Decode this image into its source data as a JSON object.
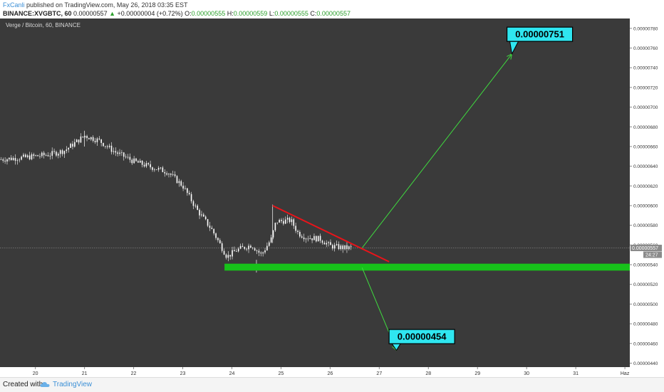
{
  "header": {
    "author": "FxCanli",
    "published_text": " published on TradingView.com, May 26, 2018 03:35 EST",
    "symbol": "BINANCE:XVGBTC, 60",
    "last": "0.00000557",
    "arrow": "▲",
    "change": "+0.00000004 (+0.72%)",
    "o_label": "O:",
    "o_value": "0.00000555",
    "h_label": "H:",
    "h_value": "0.00000559",
    "l_label": "L:",
    "l_value": "0.00000555",
    "c_label": "C:",
    "c_value": "0.00000557"
  },
  "footer": {
    "created_with": "Created with",
    "brand": "TradingView"
  },
  "colors": {
    "background": "#3a3a3a",
    "candle": "#ffffff",
    "trendline": "#e8141a",
    "support": "#17c21a",
    "arrow": "#3fdb3f",
    "callout_fill": "#2fe6f0",
    "axis_bg": "#ffffff",
    "price_tag": "#8a8a8a"
  },
  "chart_data": {
    "type": "candlestick",
    "title": "Verge / Bitcoin, 60, BINANCE",
    "interval": "60",
    "y_ticks": [
      "0.00000780",
      "0.00000760",
      "0.00000740",
      "0.00000720",
      "0.00000700",
      "0.00000680",
      "0.00000660",
      "0.00000640",
      "0.00000620",
      "0.00000600",
      "0.00000580",
      "0.00000560",
      "0.00000540",
      "0.00000520",
      "0.00000500",
      "0.00000480",
      "0.00000460",
      "0.00000440"
    ],
    "y_tick_values": [
      7.8,
      7.6,
      7.4,
      7.2,
      7.0,
      6.8,
      6.6,
      6.4,
      6.2,
      6.0,
      5.8,
      5.6,
      5.4,
      5.2,
      5.0,
      4.8,
      4.6,
      4.4
    ],
    "y_scale": 1e-06,
    "ylim": [
      4.36,
      7.9
    ],
    "x_ticks": [
      "20",
      "21",
      "22",
      "23",
      "24",
      "25",
      "26",
      "27",
      "28",
      "29",
      "30",
      "31",
      "Haz"
    ],
    "x_tick_days": [
      20,
      21,
      22,
      23,
      24,
      25,
      26,
      27,
      28,
      29,
      30,
      31,
      32
    ],
    "xlim": [
      19.28,
      32.1
    ],
    "last_price": "0.00000557",
    "last_price_value": 5.57,
    "countdown": "24:27",
    "key_points": [
      {
        "day": 19.3,
        "price": 6.47
      },
      {
        "day": 19.8,
        "price": 6.49
      },
      {
        "day": 20.3,
        "price": 6.52
      },
      {
        "day": 20.6,
        "price": 6.56
      },
      {
        "day": 21.0,
        "price": 6.71
      },
      {
        "day": 21.3,
        "price": 6.66
      },
      {
        "day": 21.6,
        "price": 6.55
      },
      {
        "day": 22.0,
        "price": 6.45
      },
      {
        "day": 22.3,
        "price": 6.4
      },
      {
        "day": 22.7,
        "price": 6.34
      },
      {
        "day": 23.0,
        "price": 6.2
      },
      {
        "day": 23.3,
        "price": 5.95
      },
      {
        "day": 23.6,
        "price": 5.75
      },
      {
        "day": 23.9,
        "price": 5.48
      },
      {
        "day": 24.1,
        "price": 5.55
      },
      {
        "day": 24.4,
        "price": 5.6
      },
      {
        "day": 24.6,
        "price": 5.5
      },
      {
        "day": 24.8,
        "price": 5.66
      },
      {
        "day": 24.9,
        "price": 5.84
      },
      {
        "day": 25.2,
        "price": 5.85
      },
      {
        "day": 25.35,
        "price": 5.72
      },
      {
        "day": 25.5,
        "price": 5.68
      },
      {
        "day": 25.8,
        "price": 5.66
      },
      {
        "day": 26.0,
        "price": 5.59
      },
      {
        "day": 26.3,
        "price": 5.57
      },
      {
        "day": 26.45,
        "price": 5.57
      }
    ],
    "annotations": {
      "trendline": {
        "from": {
          "day": 24.83,
          "price": 6.0
        },
        "to": {
          "day": 27.2,
          "price": 5.43
        }
      },
      "support_zone": {
        "from_day": 23.85,
        "to_day": 32.1,
        "low": 5.34,
        "high": 5.41
      },
      "arrow_up": {
        "from": {
          "day": 26.65,
          "price": 5.57
        },
        "to": {
          "day": 29.7,
          "price": 7.54
        }
      },
      "arrow_down": {
        "from": {
          "day": 26.65,
          "price": 5.37
        },
        "to": {
          "day": 27.35,
          "price": 4.53
        }
      },
      "target_up": {
        "label": "0.00000751",
        "day": 29.6,
        "price": 7.74
      },
      "target_down": {
        "label": "0.00000454",
        "day": 27.2,
        "price": 4.67
      }
    }
  }
}
